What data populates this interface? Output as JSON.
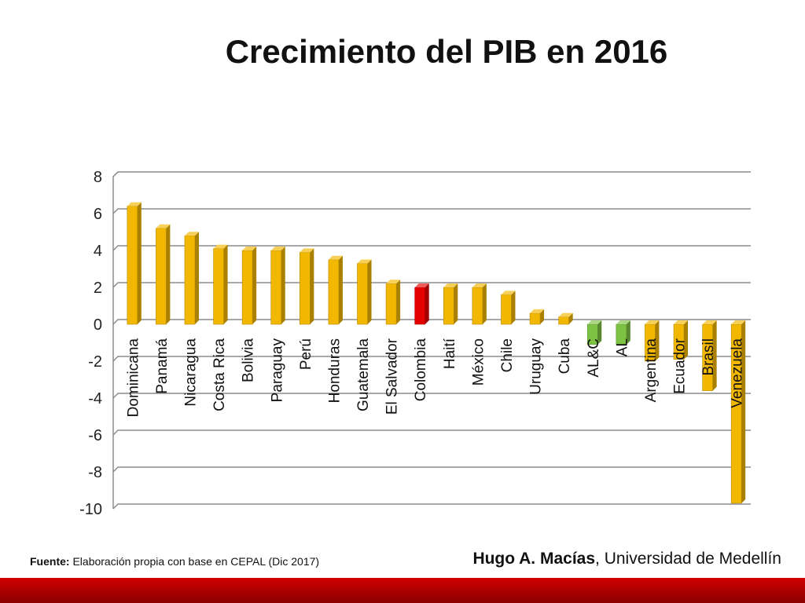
{
  "colors": {
    "default": "#F2B700",
    "colombia": "#E50000",
    "aggregate": "#7DC243",
    "grid": "#8C8C8C",
    "footer": "#C00000"
  },
  "source": {
    "label": "Fuente:",
    "text": "Elaboración propia con base en CEPAL (Dic 2017)"
  },
  "author": {
    "name": "Hugo A. Macías",
    "affiliation": ", Universidad de Medellín"
  },
  "chart_data": {
    "type": "bar",
    "title": "Crecimiento del PIB en 2016",
    "xlabel": "",
    "ylabel": "",
    "ylim": [
      -10,
      8
    ],
    "yticks": [
      8,
      6,
      4,
      2,
      0,
      -2,
      -4,
      -6,
      -8,
      -10
    ],
    "grid": true,
    "legend": "none",
    "categories": [
      "Dominicana",
      "Panamá",
      "Nicaragua",
      "Costa Rica",
      "Bolivia",
      "Paraguay",
      "Perú",
      "Honduras",
      "Guatemala",
      "El Salvador",
      "Colombia",
      "Haití",
      "México",
      "Chile",
      "Uruguay",
      "Cuba",
      "AL&C",
      "AL",
      "Argentina",
      "Ecuador",
      "Brasil",
      "Venezuela"
    ],
    "values": [
      6.4,
      5.2,
      4.8,
      4.1,
      4.0,
      4.0,
      3.9,
      3.5,
      3.3,
      2.2,
      2.0,
      2.0,
      2.0,
      1.6,
      0.6,
      0.4,
      -1.1,
      -1.1,
      -2.0,
      -1.9,
      -3.6,
      -9.7
    ],
    "bar_colors": [
      "default",
      "default",
      "default",
      "default",
      "default",
      "default",
      "default",
      "default",
      "default",
      "default",
      "colombia",
      "default",
      "default",
      "default",
      "default",
      "default",
      "aggregate",
      "aggregate",
      "default",
      "default",
      "default",
      "default"
    ]
  }
}
